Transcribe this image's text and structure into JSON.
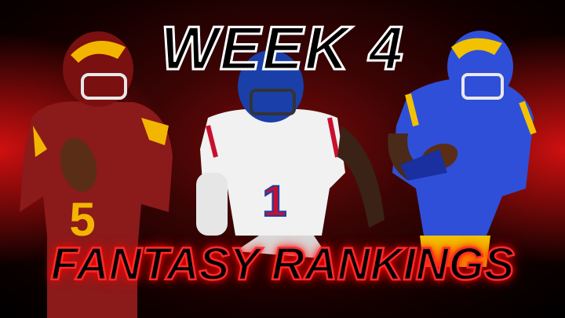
{
  "graphic": {
    "top_title": "WEEK 4",
    "bottom_title": "FANTASY RANKINGS",
    "colors": {
      "background": "#3a0404",
      "accent_red": "#ff2a2a",
      "title_stroke": "#ffffff"
    }
  },
  "players": [
    {
      "team_colors": [
        "#8b1a1a",
        "#f2b600"
      ]
    },
    {
      "team_colors": [
        "#ffffff",
        "#1a3fa8",
        "#c8102e"
      ]
    },
    {
      "team_colors": [
        "#2f4fd8",
        "#f2c200"
      ]
    }
  ]
}
